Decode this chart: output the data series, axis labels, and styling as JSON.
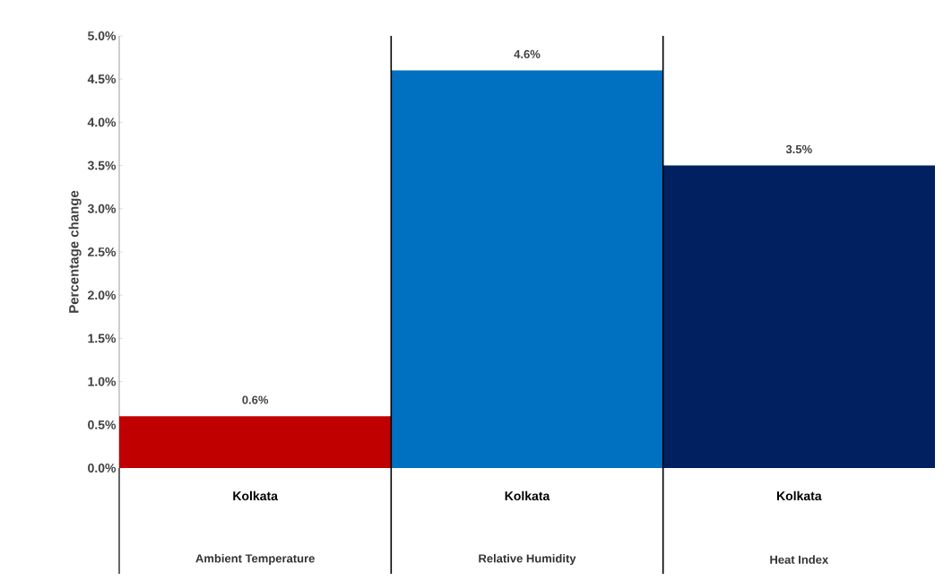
{
  "chart_data": {
    "type": "bar",
    "ylabel": "Percentage change",
    "categories": [
      "Kolkata",
      "Kolkata",
      "Kolkata"
    ],
    "values": [
      0.6,
      4.6,
      3.5
    ],
    "colors": [
      "#c00000",
      "#0070c0",
      "#002060"
    ],
    "value_labels": [
      "0.6%",
      "4.6%",
      "3.5%"
    ],
    "ylim": [
      0,
      5
    ],
    "yticks": [
      {
        "value": 0,
        "label": "0.0%"
      },
      {
        "value": 0.5,
        "label": "0.5%"
      },
      {
        "value": 1,
        "label": "1.0%"
      },
      {
        "value": 1.5,
        "label": "1.5%"
      },
      {
        "value": 2,
        "label": "2.0%"
      },
      {
        "value": 2.5,
        "label": "2.5%"
      },
      {
        "value": 3,
        "label": "3.0%"
      },
      {
        "value": 3.5,
        "label": "3.5%"
      },
      {
        "value": 4,
        "label": "4.0%"
      },
      {
        "value": 4.5,
        "label": "4.5%"
      },
      {
        "value": 5,
        "label": "5.0%"
      }
    ],
    "annotations": [
      "Ambient Temperature",
      "Relative Humidity",
      "Heat Index"
    ]
  }
}
